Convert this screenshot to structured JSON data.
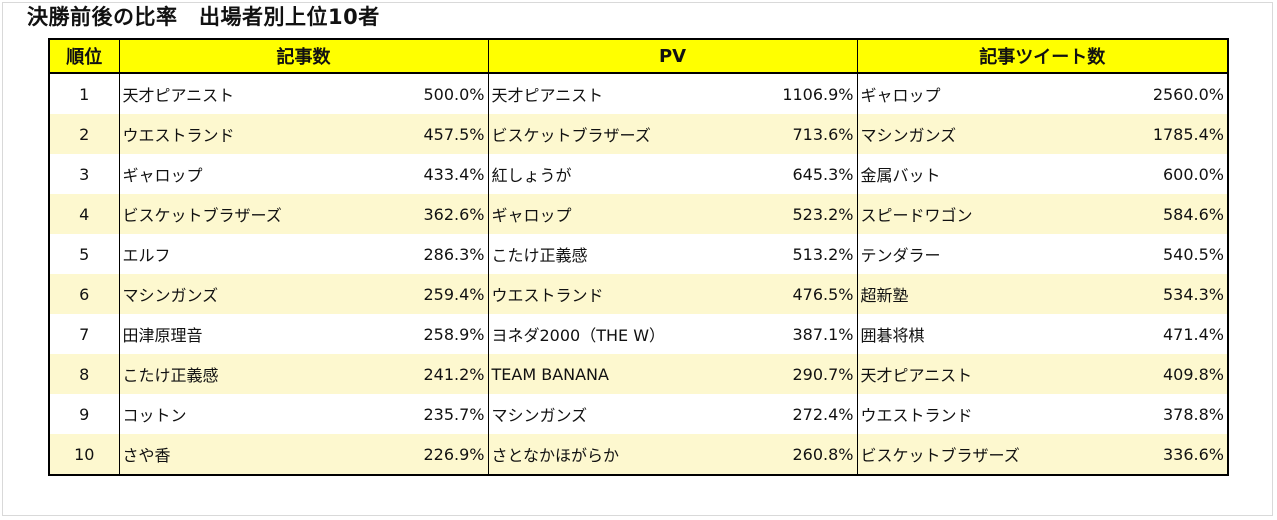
{
  "title": "決勝前後の比率　出場者別上位10者",
  "colors": {
    "header_bg": "#ffff00",
    "alt_row_bg": "#fdf8cf",
    "border": "#000000"
  },
  "headers": {
    "rank": "順位",
    "articles": "記事数",
    "pv": "PV",
    "tweets": "記事ツイート数"
  },
  "rows": [
    {
      "rank": "1",
      "articles_name": "天才ピアニスト",
      "articles_pct": "500.0%",
      "pv_name": "天才ピアニスト",
      "pv_pct": "1106.9%",
      "tweets_name": "ギャロップ",
      "tweets_pct": "2560.0%"
    },
    {
      "rank": "2",
      "articles_name": "ウエストランド",
      "articles_pct": "457.5%",
      "pv_name": "ビスケットブラザーズ",
      "pv_pct": "713.6%",
      "tweets_name": "マシンガンズ",
      "tweets_pct": "1785.4%"
    },
    {
      "rank": "3",
      "articles_name": "ギャロップ",
      "articles_pct": "433.4%",
      "pv_name": "紅しょうが",
      "pv_pct": "645.3%",
      "tweets_name": "金属バット",
      "tweets_pct": "600.0%"
    },
    {
      "rank": "4",
      "articles_name": "ビスケットブラザーズ",
      "articles_pct": "362.6%",
      "pv_name": "ギャロップ",
      "pv_pct": "523.2%",
      "tweets_name": "スピードワゴン",
      "tweets_pct": "584.6%"
    },
    {
      "rank": "5",
      "articles_name": "エルフ",
      "articles_pct": "286.3%",
      "pv_name": "こたけ正義感",
      "pv_pct": "513.2%",
      "tweets_name": "テンダラー",
      "tweets_pct": "540.5%"
    },
    {
      "rank": "6",
      "articles_name": "マシンガンズ",
      "articles_pct": "259.4%",
      "pv_name": "ウエストランド",
      "pv_pct": "476.5%",
      "tweets_name": "超新塾",
      "tweets_pct": "534.3%"
    },
    {
      "rank": "7",
      "articles_name": "田津原理音",
      "articles_pct": "258.9%",
      "pv_name": "ヨネダ2000（THE W）",
      "pv_pct": "387.1%",
      "tweets_name": "囲碁将棋",
      "tweets_pct": "471.4%"
    },
    {
      "rank": "8",
      "articles_name": "こたけ正義感",
      "articles_pct": "241.2%",
      "pv_name": "TEAM BANANA",
      "pv_pct": "290.7%",
      "tweets_name": "天才ピアニスト",
      "tweets_pct": "409.8%"
    },
    {
      "rank": "9",
      "articles_name": "コットン",
      "articles_pct": "235.7%",
      "pv_name": "マシンガンズ",
      "pv_pct": "272.4%",
      "tweets_name": "ウエストランド",
      "tweets_pct": "378.8%"
    },
    {
      "rank": "10",
      "articles_name": "さや香",
      "articles_pct": "226.9%",
      "pv_name": "さとなかほがらか",
      "pv_pct": "260.8%",
      "tweets_name": "ビスケットブラザーズ",
      "tweets_pct": "336.6%"
    }
  ]
}
